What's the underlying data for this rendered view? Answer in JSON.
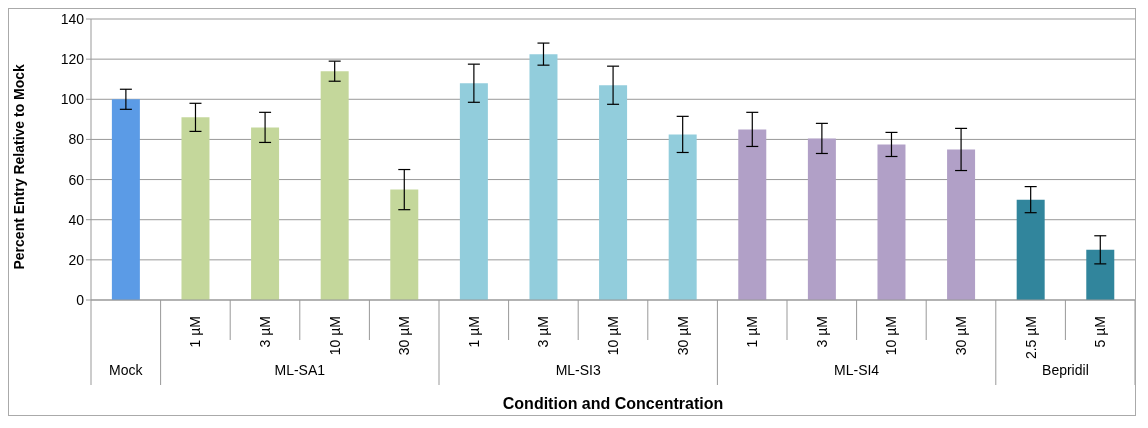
{
  "chart_data": {
    "type": "bar",
    "xlabel": "Condition and Concentration",
    "ylabel": "Percent Entry Relative to Mock",
    "ylim": [
      0,
      140
    ],
    "yticks": [
      0,
      20,
      40,
      60,
      80,
      100,
      120,
      140
    ],
    "grid": "y",
    "categories": [
      null,
      "1 µM",
      "3 µM",
      "10 µM",
      "30 µM",
      "1 µM",
      "3 µM",
      "10 µM",
      "30 µM",
      "1 µM",
      "3 µM",
      "10 µM",
      "30 µM",
      "2.5 µM",
      "5 µM"
    ],
    "annotations": [
      "Mock",
      "ML-SA1",
      "ML-SI3",
      "ML-SI4",
      "Bepridil"
    ],
    "series": [
      {
        "color": "#5b9be6",
        "values": [
          100,
          null,
          null,
          null,
          null,
          null,
          null,
          null,
          null,
          null,
          null,
          null,
          null,
          null,
          null
        ],
        "errors": [
          5,
          null,
          null,
          null,
          null,
          null,
          null,
          null,
          null,
          null,
          null,
          null,
          null,
          null,
          null
        ]
      },
      {
        "color": "#c4d79b",
        "values": [
          null,
          91,
          86,
          114,
          55,
          null,
          null,
          null,
          null,
          null,
          null,
          null,
          null,
          null,
          null
        ],
        "errors": [
          null,
          7,
          7.5,
          5,
          10,
          null,
          null,
          null,
          null,
          null,
          null,
          null,
          null,
          null,
          null
        ]
      },
      {
        "color": "#92cddc",
        "values": [
          null,
          null,
          null,
          null,
          null,
          108,
          122.5,
          107,
          82.5,
          null,
          null,
          null,
          null,
          null,
          null
        ],
        "errors": [
          null,
          null,
          null,
          null,
          null,
          9.5,
          5.5,
          9.5,
          9,
          null,
          null,
          null,
          null,
          null,
          null
        ]
      },
      {
        "color": "#b1a0c7",
        "values": [
          null,
          null,
          null,
          null,
          null,
          null,
          null,
          null,
          null,
          85,
          80.5,
          77.5,
          75,
          null,
          null
        ],
        "errors": [
          null,
          null,
          null,
          null,
          null,
          null,
          null,
          null,
          null,
          8.5,
          7.5,
          6,
          10.5,
          null,
          null
        ]
      },
      {
        "color": "#31859c",
        "values": [
          null,
          null,
          null,
          null,
          null,
          null,
          null,
          null,
          null,
          null,
          null,
          null,
          null,
          50,
          25
        ],
        "errors": [
          null,
          null,
          null,
          null,
          null,
          null,
          null,
          null,
          null,
          null,
          null,
          null,
          null,
          6.5,
          7
        ]
      }
    ]
  }
}
